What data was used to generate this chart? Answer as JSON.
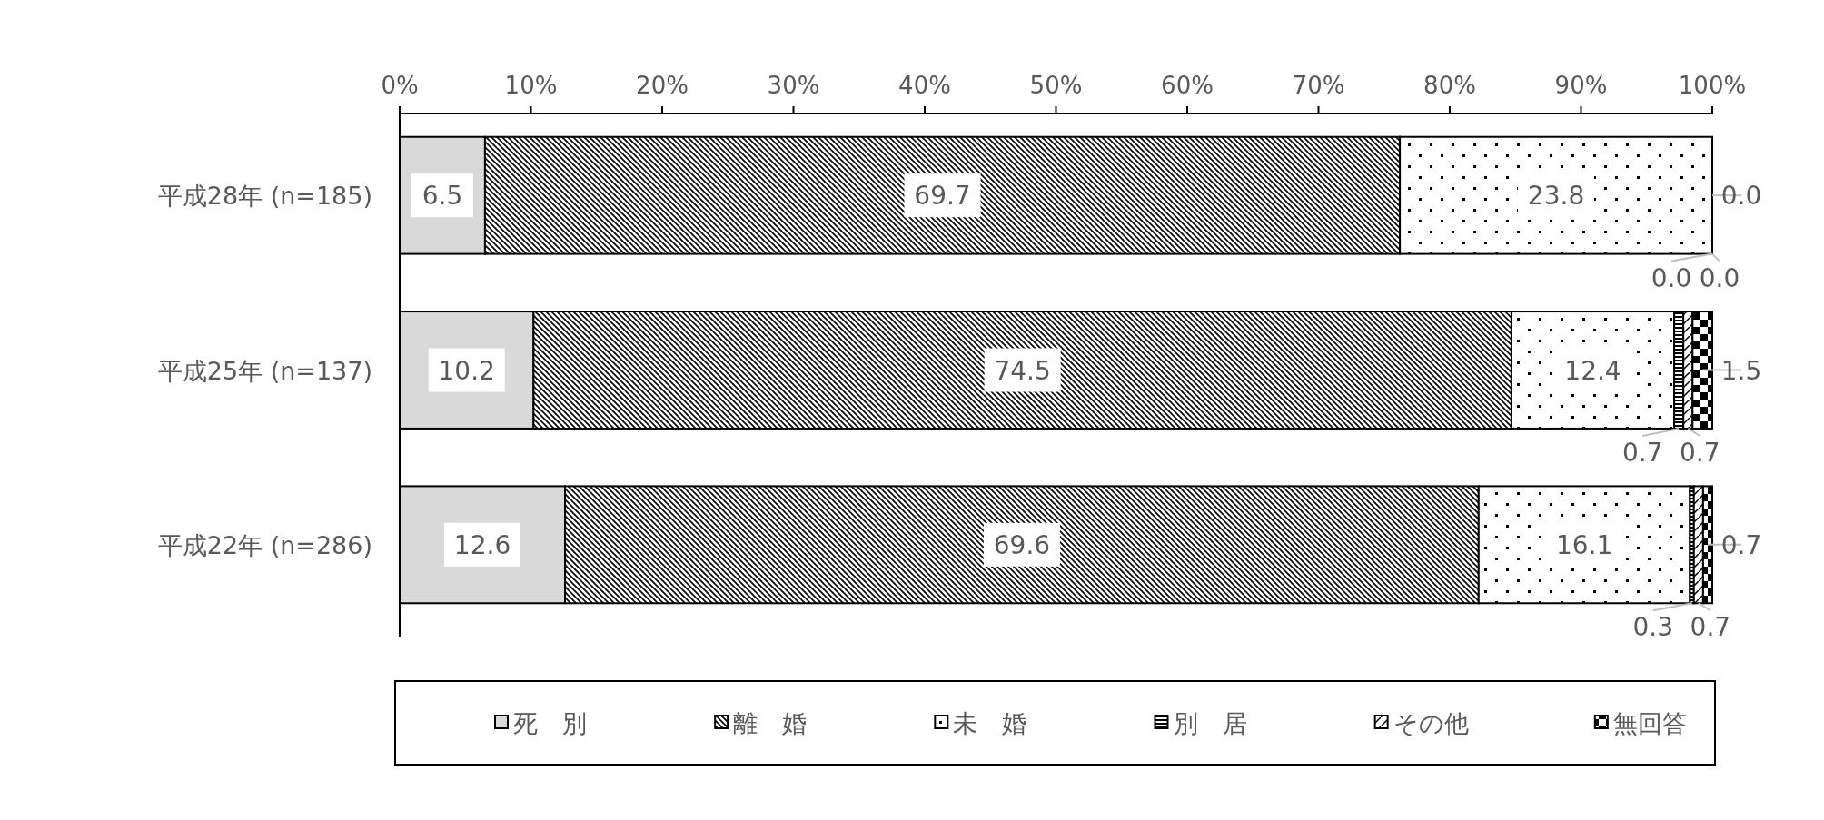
{
  "chart_data": {
    "type": "bar",
    "orientation": "horizontal",
    "stacked": true,
    "legend": "bottom",
    "grid": false,
    "categories": [
      "平成28年 (n=185)",
      "平成25年 (n=137)",
      "平成22年 (n=286)"
    ],
    "xlim": [
      0,
      100
    ],
    "xticks": [
      {
        "value": 0,
        "label": "0%"
      },
      {
        "value": 10,
        "label": "10%"
      },
      {
        "value": 20,
        "label": "20%"
      },
      {
        "value": 30,
        "label": "30%"
      },
      {
        "value": 40,
        "label": "40%"
      },
      {
        "value": 50,
        "label": "50%"
      },
      {
        "value": 60,
        "label": "60%"
      },
      {
        "value": 70,
        "label": "70%"
      },
      {
        "value": 80,
        "label": "80%"
      },
      {
        "value": 90,
        "label": "90%"
      },
      {
        "value": 100,
        "label": "100%"
      }
    ],
    "series": [
      {
        "name": "死　別",
        "color": "#d9d9d9",
        "values": [
          6.5,
          10.2,
          12.6
        ],
        "value_labels": [
          "6.5",
          "10.2",
          "12.6"
        ]
      },
      {
        "name": "離　婚",
        "color": "#000000",
        "values": [
          69.7,
          74.5,
          69.6
        ],
        "value_labels": [
          "69.7",
          "74.5",
          "69.6"
        ]
      },
      {
        "name": "未　婚",
        "color": "#000000",
        "values": [
          23.8,
          12.4,
          16.1
        ],
        "value_labels": [
          "23.8",
          "12.4",
          "16.1"
        ]
      },
      {
        "name": "別　居",
        "color": "#000000",
        "values": [
          0.0,
          0.7,
          0.3
        ],
        "value_labels": [
          "0.0",
          "0.7",
          "0.3"
        ]
      },
      {
        "name": "その他",
        "color": "#000000",
        "values": [
          0.0,
          0.7,
          0.7
        ],
        "value_labels": [
          "0.0",
          "0.7",
          "0.7"
        ]
      },
      {
        "name": "無回答",
        "color": "#000000",
        "values": [
          0.0,
          1.5,
          0.7
        ],
        "value_labels": [
          "0.0",
          "1.5",
          "0.7"
        ]
      }
    ]
  }
}
